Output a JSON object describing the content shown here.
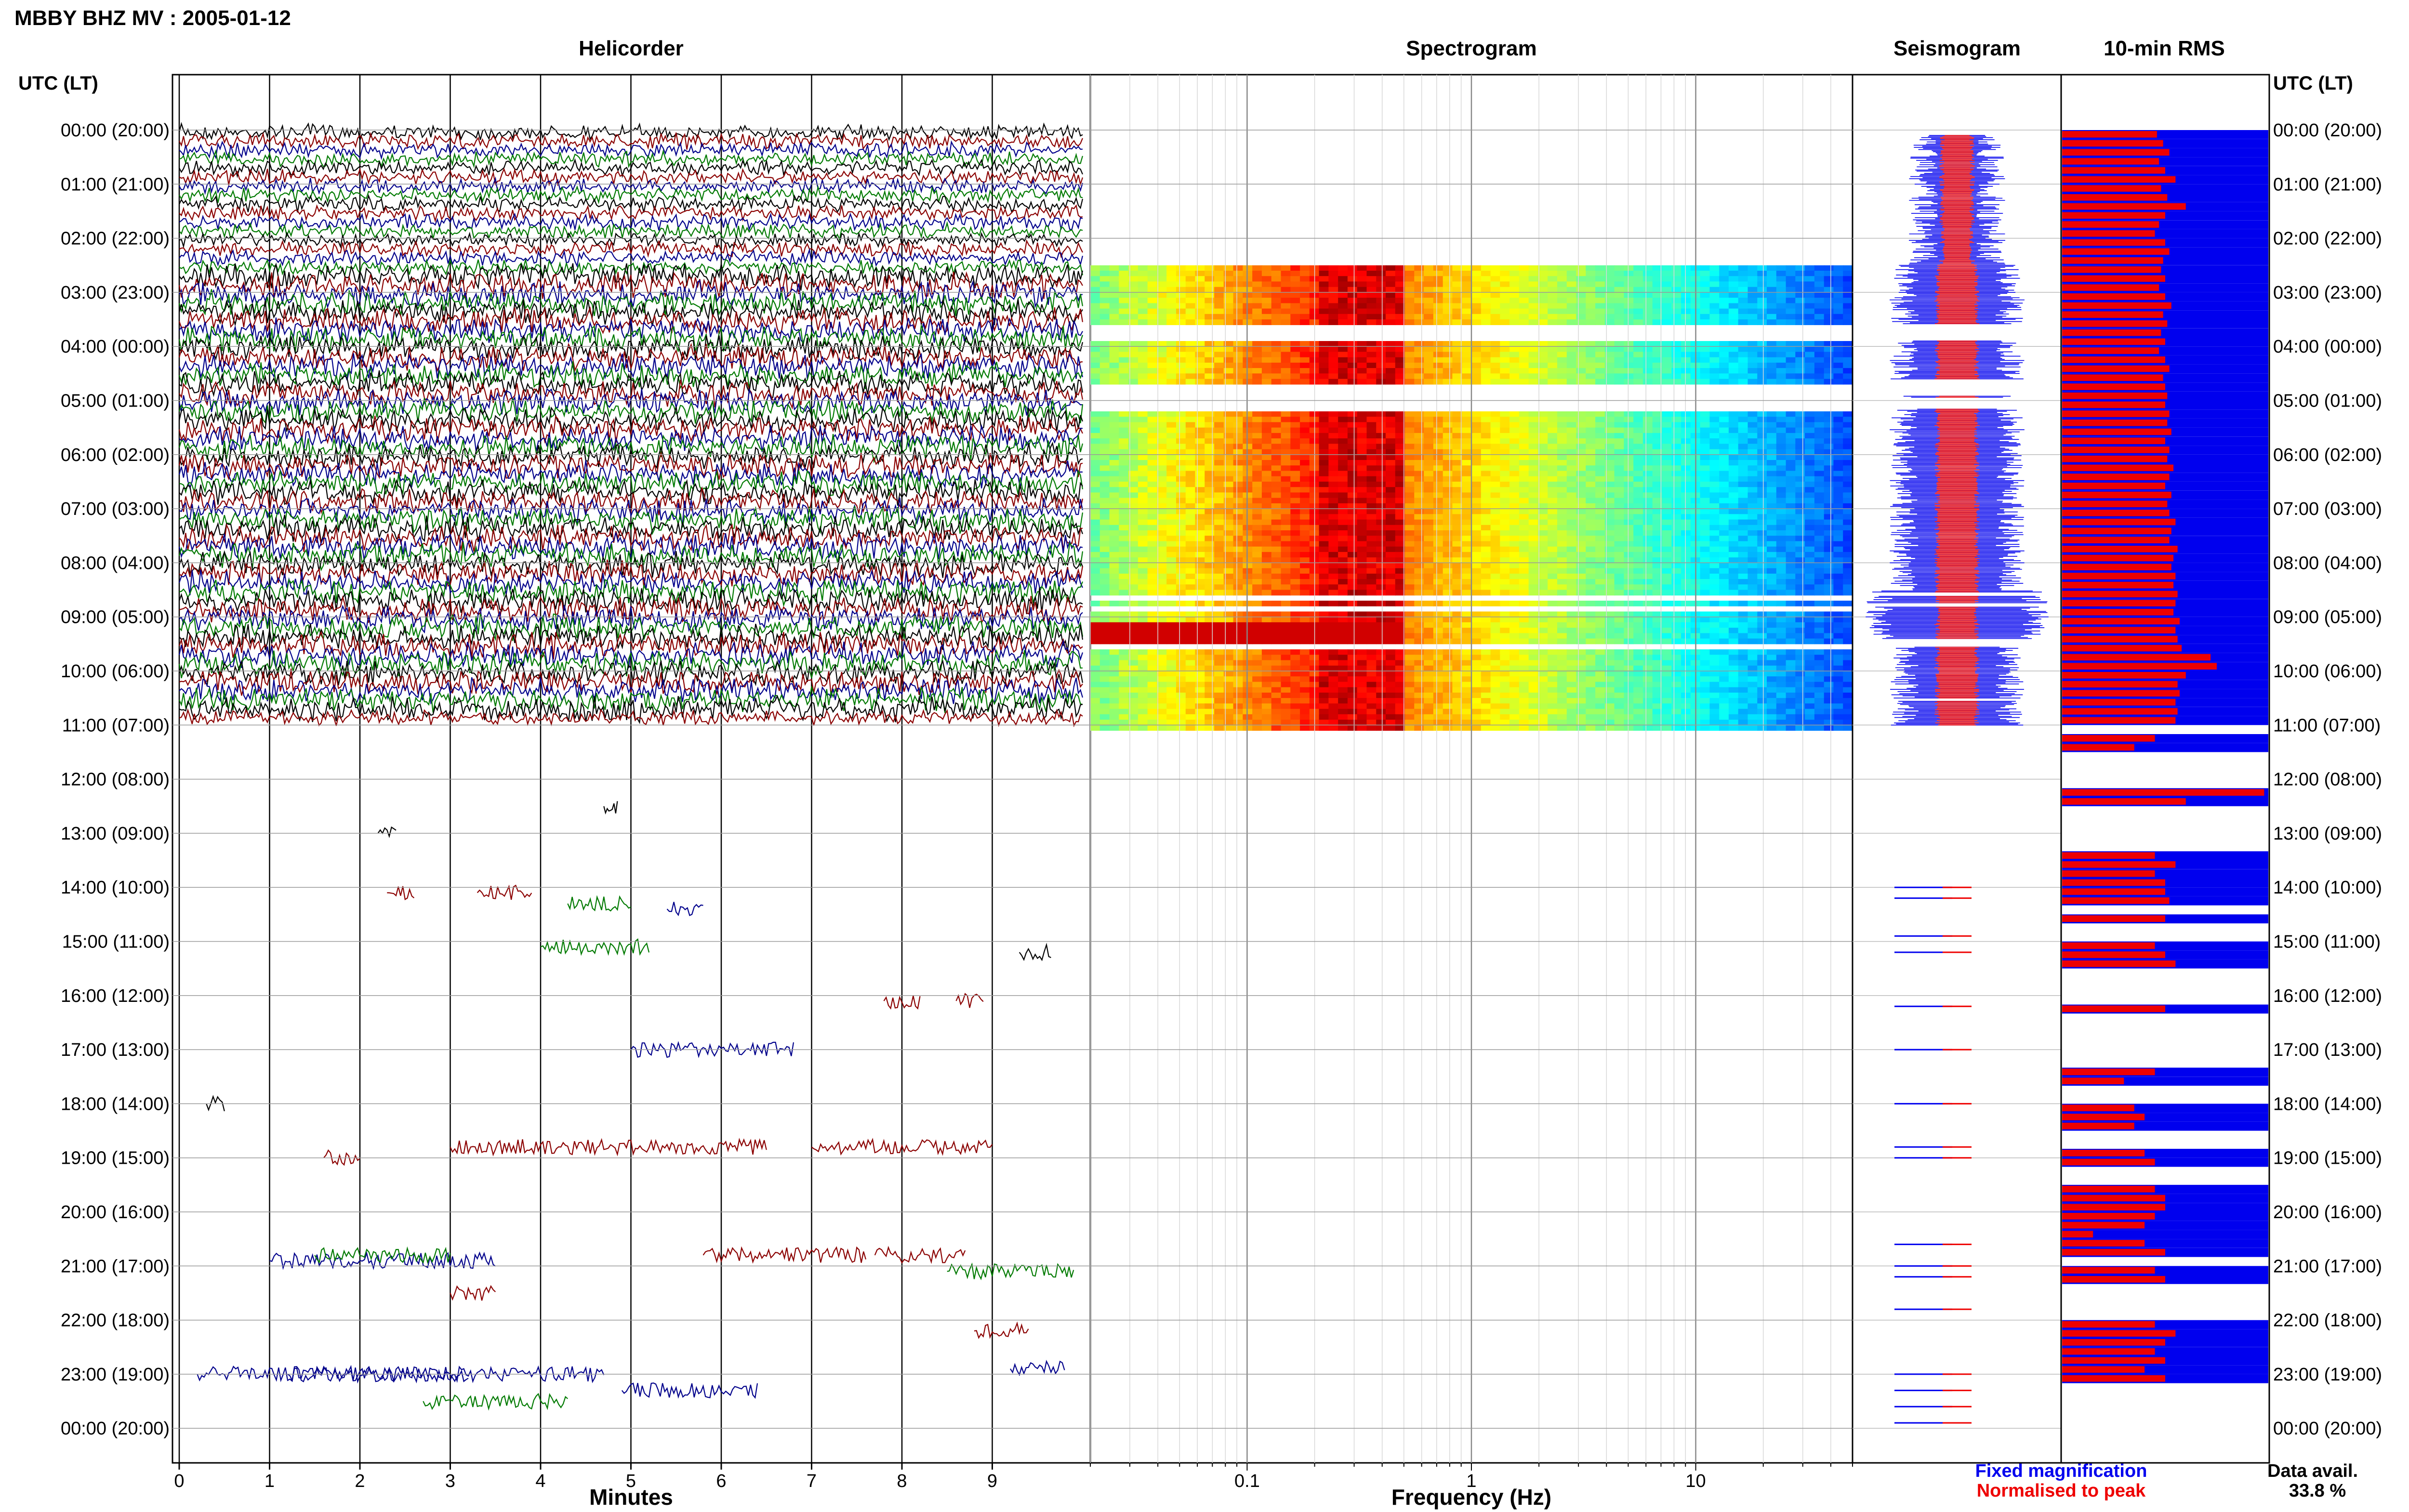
{
  "header": {
    "title": "MBBY BHZ MV : 2005-01-12"
  },
  "panels": {
    "helicorder": "Helicorder",
    "spectrogram": "Spectrogram",
    "seismogram": "Seismogram",
    "rms": "10-min RMS"
  },
  "axis": {
    "left_header": "UTC (LT)",
    "right_header": "UTC (LT)",
    "helicorder_xlabel": "Minutes",
    "spectrogram_xlabel": "Frequency (Hz)"
  },
  "legend": {
    "fixed": "Fixed magnification",
    "normalised": "Normalised to peak",
    "fixed_color": "#0000ee",
    "normalised_color": "#ee0000"
  },
  "availability": {
    "label": "Data avail.",
    "value": "33.8 %"
  },
  "colors": {
    "trace_colors": [
      "#000000",
      "#8b0000",
      "#00008b",
      "#007a00"
    ],
    "rms_fixed": "#0000ee",
    "rms_normalised": "#ee0000"
  },
  "chart_data": [
    {
      "type": "line",
      "name": "Helicorder",
      "xlabel": "Minutes",
      "x_ticks": [
        "0",
        "1",
        "2",
        "3",
        "4",
        "5",
        "6",
        "7",
        "8",
        "9"
      ],
      "xlim": [
        0,
        10
      ],
      "y_ticks": [
        "00:00 (20:00)",
        "01:00 (21:00)",
        "02:00 (22:00)",
        "03:00 (23:00)",
        "04:00 (00:00)",
        "05:00 (01:00)",
        "06:00 (02:00)",
        "07:00 (03:00)",
        "08:00 (04:00)",
        "09:00 (05:00)",
        "10:00 (06:00)",
        "11:00 (07:00)",
        "12:00 (08:00)",
        "13:00 (09:00)",
        "14:00 (10:00)",
        "15:00 (11:00)",
        "16:00 (12:00)",
        "17:00 (13:00)",
        "18:00 (14:00)",
        "19:00 (15:00)",
        "20:00 (16:00)",
        "21:00 (17:00)",
        "22:00 (18:00)",
        "23:00 (19:00)",
        "00:00 (20:00)"
      ]
    },
    {
      "type": "heatmap",
      "name": "Spectrogram",
      "xlabel": "Frequency (Hz)",
      "x_scale": "log",
      "x_ticks": [
        "0.1",
        "1",
        "10"
      ],
      "xlim": [
        0.02,
        50
      ],
      "colormap": "jet",
      "energy_peak_hz": [
        0.2,
        0.5
      ],
      "data_hours_utc": [
        [
          2.5,
          11.0
        ]
      ]
    },
    {
      "type": "area",
      "name": "Seismogram",
      "series": [
        {
          "name": "Fixed magnification",
          "color": "#0000ee"
        },
        {
          "name": "Normalised to peak",
          "color": "#ee0000"
        }
      ]
    },
    {
      "type": "bar",
      "name": "10-min RMS",
      "orientation": "horizontal",
      "xlim": [
        0,
        1
      ],
      "series": [
        {
          "name": "Fixed magnification",
          "color": "#0000ee",
          "value": 1.0
        },
        {
          "name": "Normalised to peak",
          "color": "#ee0000",
          "values": [
            0.46,
            0.49,
            0.52,
            0.47,
            0.5,
            0.55,
            0.48,
            0.51,
            0.6,
            0.5,
            0.47,
            0.45,
            0.5,
            0.52,
            0.49,
            0.48,
            0.5,
            0.47,
            0.5,
            0.53,
            0.49,
            0.51,
            0.48,
            0.5,
            0.47,
            0.5,
            0.52,
            0.49,
            0.5,
            0.51,
            0.5,
            0.52,
            0.51,
            0.53,
            0.5,
            0.52,
            0.51,
            0.54,
            0.52,
            0.5,
            0.53,
            0.51,
            0.52,
            0.55,
            0.53,
            0.52,
            0.56,
            0.54,
            0.53,
            0.55,
            0.54,
            0.56,
            0.55,
            0.54,
            0.57,
            0.55,
            0.56,
            0.58,
            0.72,
            0.75,
            0.6,
            0.56,
            0.57,
            0.55,
            0.56,
            0.55,
            null,
            0.45,
            0.35,
            null,
            null,
            null,
            null,
            0.98,
            0.6,
            null,
            null,
            null,
            null,
            null,
            0.45,
            0.55,
            0.45,
            0.5,
            0.5,
            0.52,
            null,
            0.5,
            null,
            null,
            0.45,
            0.5,
            0.55,
            null,
            null,
            null,
            null,
            0.5,
            null,
            null,
            null,
            null,
            null,
            null,
            0.45,
            0.3,
            null,
            null,
            0.35,
            0.4,
            0.35,
            null,
            null,
            0.4,
            0.45,
            null,
            null,
            0.45,
            0.5,
            0.5,
            0.45,
            0.4,
            0.15,
            0.4,
            0.5,
            null,
            0.45,
            0.5,
            null,
            null,
            null,
            null,
            0.45,
            0.55,
            0.5,
            0.45,
            0.5,
            0.4,
            0.5,
            null
          ]
        }
      ]
    }
  ]
}
